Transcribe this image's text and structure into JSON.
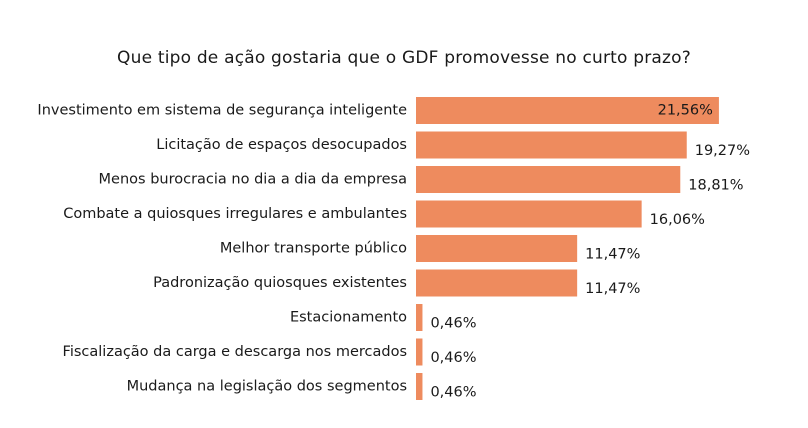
{
  "chart_data": {
    "type": "bar",
    "orientation": "horizontal",
    "title": "Que tipo de ação gostaria que o GDF promovesse no curto prazo?",
    "categories": [
      "Investimento em sistema de segurança inteligente",
      "Licitação de espaços desocupados",
      "Menos burocracia no dia a dia da empresa",
      "Combate a quiosques irregulares e ambulantes",
      "Melhor transporte público",
      "Padronização quiosques existentes",
      "Estacionamento",
      "Fiscalização da carga e descarga nos mercados",
      "Mudança na legislação dos segmentos"
    ],
    "values": [
      21.56,
      19.27,
      18.81,
      16.06,
      11.47,
      11.47,
      0.46,
      0.46,
      0.46
    ],
    "value_labels": [
      "21,56%",
      "19,27%",
      "18,81%",
      "16,06%",
      "11,47%",
      "11,47%",
      "0,46%",
      "0,46%",
      "0,46%"
    ],
    "bar_color": "#ee8b5e",
    "grid": false,
    "legend": "none"
  }
}
